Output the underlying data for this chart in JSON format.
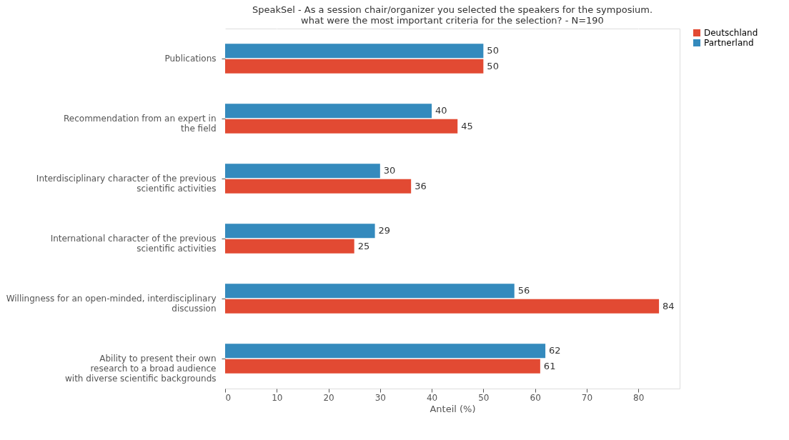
{
  "chart_data": {
    "type": "bar",
    "orientation": "horizontal",
    "title": "SpeakSel - As a session chair/organizer you selected the speakers for the symposium.\nwhat were the most important criteria for the selection? - N=190",
    "xlabel": "Anteil (%)",
    "categories": [
      "Publications",
      "Recommendation from an expert in\nthe field",
      "Interdisciplinary character of the previous\nscientific activities",
      "International character of the previous\nscientific activities",
      "Willingness for an open-minded, interdisciplinary\ndiscussion",
      "Ability to present their own\nresearch to a broad audience\nwith diverse scientific backgrounds"
    ],
    "series": [
      {
        "name": "Deutschland",
        "color": "#e24a33",
        "values": [
          50,
          45,
          36,
          25,
          84,
          61
        ]
      },
      {
        "name": "Partnerland",
        "color": "#348abd",
        "values": [
          50,
          40,
          30,
          29,
          56,
          62
        ]
      }
    ],
    "xlim": [
      0,
      88
    ],
    "xticks": [
      0,
      10,
      20,
      30,
      40,
      50,
      60,
      70,
      80
    ],
    "grid": "x",
    "legend": "top right",
    "data_labels": true
  }
}
